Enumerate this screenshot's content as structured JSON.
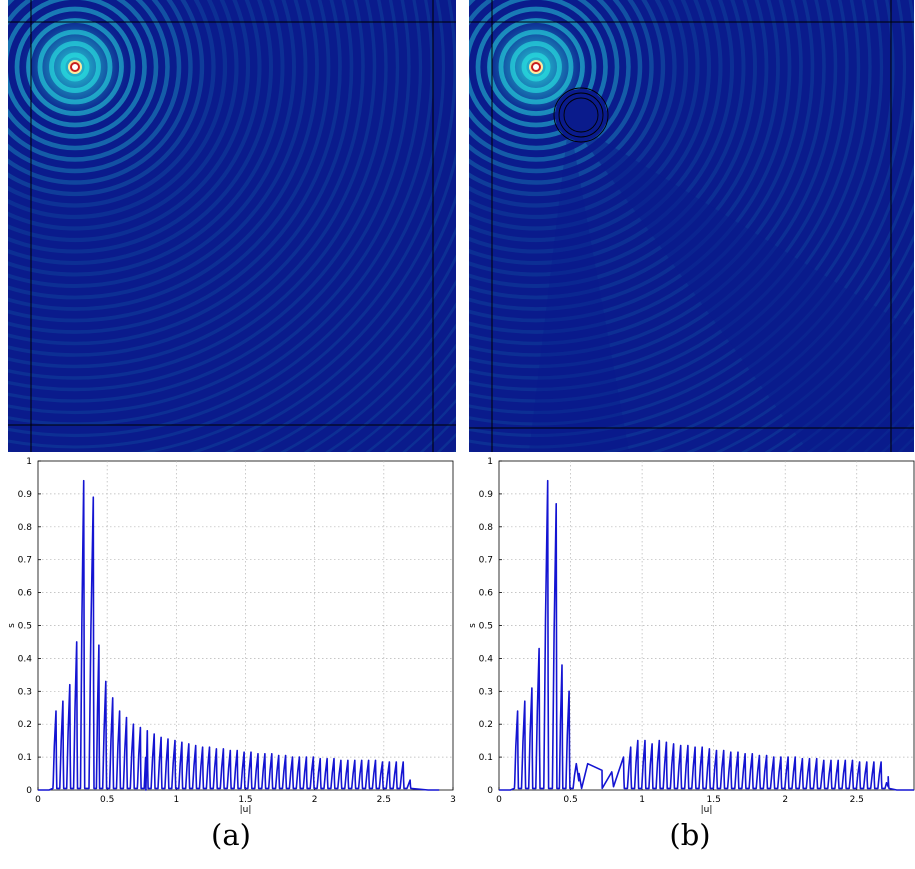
{
  "panels": [
    {
      "caption": "(a)",
      "field": {
        "scatterer": false
      },
      "plot": {
        "ylabel": "s",
        "xlabel": "|u|"
      }
    },
    {
      "caption": "(b)",
      "field": {
        "scatterer": true
      },
      "plot": {
        "ylabel": "s",
        "xlabel": "|u|"
      }
    }
  ],
  "colors": {
    "field_background": "#0a1b8c",
    "wave_bright": "#29e0e0",
    "source_core": "#c81e1e",
    "line": "#1414d2",
    "grid": "#b4b4b4"
  },
  "chart_data": [
    {
      "type": "line",
      "xlabel": "|u|",
      "ylabel": "s",
      "xlim": [
        0,
        3
      ],
      "ylim": [
        0,
        1
      ],
      "xticks": [
        "0",
        "0.5",
        "1",
        "1.5",
        "2",
        "2.5",
        "3"
      ],
      "yticks": [
        "0",
        "0.1",
        "0.2",
        "0.3",
        "0.4",
        "0.5",
        "0.6",
        "0.7",
        "0.8",
        "0.9",
        "1"
      ],
      "grid": true,
      "peaks": {
        "x": [
          0.13,
          0.18,
          0.23,
          0.28,
          0.33,
          0.4,
          0.44,
          0.49,
          0.54,
          0.59,
          0.64,
          0.69,
          0.74,
          0.79,
          0.84,
          0.89,
          0.94,
          0.99,
          1.04,
          1.09,
          1.14,
          1.19,
          1.24,
          1.29,
          1.34,
          1.39,
          1.44,
          1.49,
          1.54,
          1.59,
          1.64,
          1.69,
          1.74,
          1.79,
          1.84,
          1.89,
          1.94,
          1.99,
          2.04,
          2.09,
          2.14,
          2.19,
          2.24,
          2.29,
          2.34,
          2.39,
          2.44,
          2.49,
          2.54,
          2.59,
          2.64,
          2.69
        ],
        "y": [
          0.24,
          0.27,
          0.32,
          0.45,
          0.94,
          0.89,
          0.44,
          0.33,
          0.28,
          0.24,
          0.22,
          0.2,
          0.19,
          0.18,
          0.17,
          0.16,
          0.155,
          0.15,
          0.145,
          0.14,
          0.135,
          0.13,
          0.13,
          0.125,
          0.125,
          0.12,
          0.12,
          0.115,
          0.115,
          0.11,
          0.11,
          0.11,
          0.105,
          0.105,
          0.1,
          0.1,
          0.1,
          0.1,
          0.095,
          0.095,
          0.095,
          0.09,
          0.09,
          0.09,
          0.09,
          0.09,
          0.09,
          0.085,
          0.085,
          0.085,
          0.085,
          0.03
        ]
      },
      "envelope": {
        "x": [
          0,
          0.08,
          0.11,
          0.72,
          0.78,
          2.82,
          2.9
        ],
        "y": [
          0,
          0,
          0.02,
          0.02,
          0,
          0,
          0
        ]
      }
    },
    {
      "type": "line",
      "xlabel": "|u|",
      "ylabel": "s",
      "xlim": [
        0,
        2.9
      ],
      "ylim": [
        0,
        1
      ],
      "xticks": [
        "0",
        "0.5",
        "1",
        "1.5",
        "2",
        "2.5"
      ],
      "yticks": [
        "0",
        "0.1",
        "0.2",
        "0.3",
        "0.4",
        "0.5",
        "0.6",
        "0.7",
        "0.8",
        "0.9",
        "1"
      ],
      "grid": true,
      "peaks": {
        "x": [
          0.13,
          0.18,
          0.23,
          0.28,
          0.34,
          0.4,
          0.44,
          0.49,
          0.54,
          0.87,
          0.92,
          0.97,
          1.02,
          1.07,
          1.12,
          1.17,
          1.22,
          1.27,
          1.32,
          1.37,
          1.42,
          1.47,
          1.52,
          1.57,
          1.62,
          1.67,
          1.72,
          1.77,
          1.82,
          1.87,
          1.92,
          1.97,
          2.02,
          2.07,
          2.12,
          2.17,
          2.22,
          2.27,
          2.32,
          2.37,
          2.42,
          2.47,
          2.52,
          2.57,
          2.62,
          2.67,
          2.72
        ],
        "y": [
          0.24,
          0.27,
          0.31,
          0.43,
          0.94,
          0.87,
          0.38,
          0.3,
          0.08,
          0.1,
          0.13,
          0.15,
          0.15,
          0.14,
          0.15,
          0.145,
          0.14,
          0.135,
          0.135,
          0.13,
          0.13,
          0.125,
          0.12,
          0.12,
          0.115,
          0.115,
          0.11,
          0.11,
          0.105,
          0.105,
          0.1,
          0.1,
          0.1,
          0.1,
          0.095,
          0.095,
          0.095,
          0.09,
          0.09,
          0.09,
          0.09,
          0.09,
          0.085,
          0.085,
          0.085,
          0.085,
          0.04
        ]
      },
      "envelope": {
        "x": [
          0,
          0.08,
          0.11,
          0.56,
          0.62,
          0.72,
          0.8,
          2.72,
          2.78,
          2.9
        ],
        "y": [
          0,
          0,
          0.02,
          0.05,
          0.08,
          0.06,
          0.01,
          0.01,
          0,
          0
        ]
      }
    }
  ]
}
